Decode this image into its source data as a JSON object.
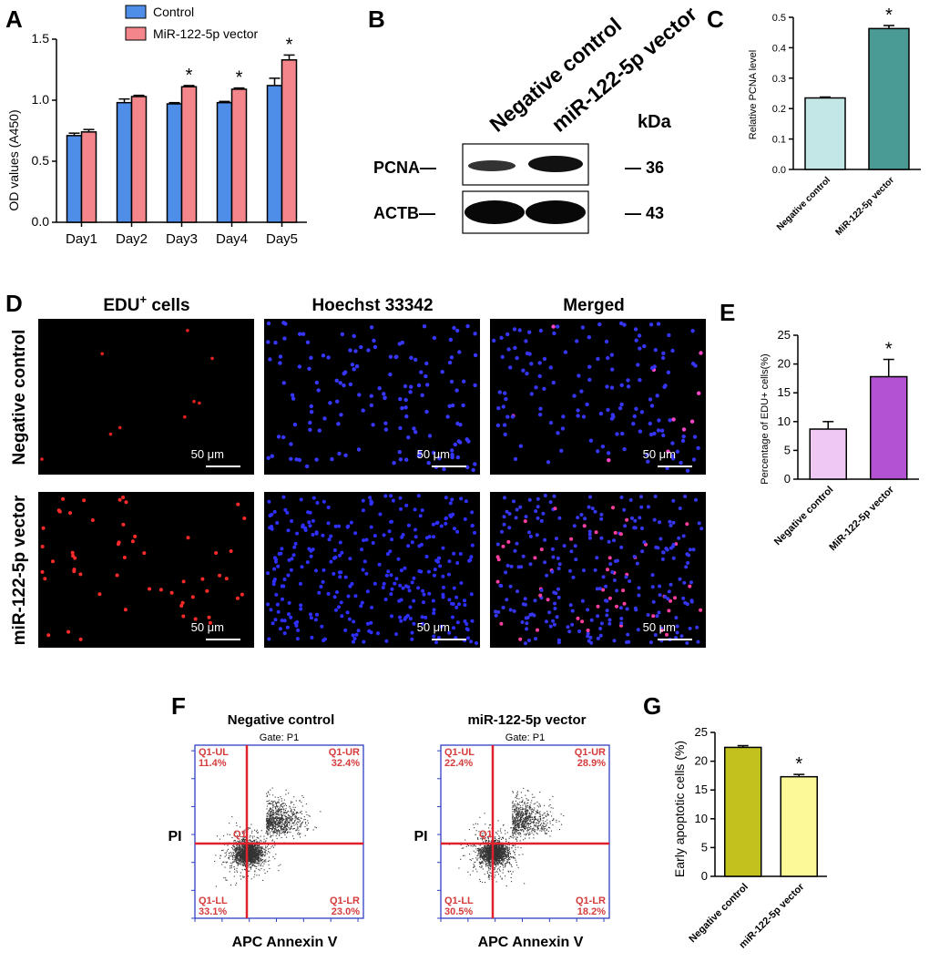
{
  "panels": {
    "A": "A",
    "B": "B",
    "C": "C",
    "D": "D",
    "E": "E",
    "F": "F",
    "G": "G"
  },
  "colors": {
    "control": "#4f8ee8",
    "vector": "#f4858a",
    "c_nc": "#c3e6e6",
    "c_vec": "#4a9b96",
    "e_nc": "#efc8f4",
    "e_vec": "#b452d4",
    "g_nc": "#c2c21e",
    "g_vec": "#fbfa96"
  },
  "chart_data": [
    {
      "id": "A",
      "type": "bar",
      "categories": [
        "Day1",
        "Day2",
        "Day3",
        "Day4",
        "Day5"
      ],
      "series": [
        {
          "name": "Control",
          "values": [
            0.71,
            0.98,
            0.97,
            0.98,
            1.12
          ],
          "errors": [
            0.02,
            0.03,
            0.01,
            0.01,
            0.06
          ]
        },
        {
          "name": "MiR-122-5p vector",
          "values": [
            0.74,
            1.03,
            1.11,
            1.09,
            1.33
          ],
          "errors": [
            0.02,
            0.01,
            0.01,
            0.01,
            0.04
          ]
        }
      ],
      "significance": [
        "",
        "",
        "*",
        "*",
        "*"
      ],
      "ylabel": "OD values (A450)",
      "ylim": [
        0,
        1.5
      ],
      "yticks": [
        "0.0",
        "0.5",
        "1.0",
        "1.5"
      ]
    },
    {
      "id": "C",
      "type": "bar",
      "categories": [
        "Negative control",
        "MiR-122-5p vector"
      ],
      "values": [
        0.235,
        0.463
      ],
      "errors": [
        0.003,
        0.01
      ],
      "significance": [
        "",
        "*"
      ],
      "ylabel": "Relative PCNA level",
      "ylim": [
        0,
        0.5
      ],
      "yticks": [
        "0.0",
        "0.1",
        "0.2",
        "0.3",
        "0.4",
        "0.5"
      ]
    },
    {
      "id": "E",
      "type": "bar",
      "categories": [
        "Negative control",
        "MiR-122-5p vector"
      ],
      "values": [
        8.7,
        17.8
      ],
      "errors": [
        1.3,
        3.0
      ],
      "significance": [
        "",
        "*"
      ],
      "ylabel": "Percentage of EDU+ cells(%)",
      "ylim": [
        0,
        25
      ],
      "yticks": [
        "0",
        "5",
        "10",
        "15",
        "20",
        "25"
      ]
    },
    {
      "id": "G",
      "type": "bar",
      "categories": [
        "Negative control",
        "miR-122-5p vector"
      ],
      "values": [
        22.4,
        17.3
      ],
      "errors": [
        0.3,
        0.4
      ],
      "significance": [
        "",
        "*"
      ],
      "ylabel": "Early apoptotic cells (%)",
      "ylim": [
        0,
        25
      ],
      "yticks": [
        "0",
        "5",
        "10",
        "15",
        "20",
        "25"
      ]
    }
  ],
  "panelB": {
    "lane1": "Negative control",
    "lane2": "miR-122-5p vector",
    "kda": "kDa",
    "rows": [
      {
        "protein": "PCNA—",
        "size": "— 36"
      },
      {
        "protein": "ACTB—",
        "size": "— 43"
      }
    ]
  },
  "panelD": {
    "col1_main": "EDU",
    "col1_sup": "+",
    "col1_rest": " cells",
    "col2": "Hoechst 33342",
    "col3": "Merged",
    "row1": "Negative control",
    "row2": "miR-122-5p vector",
    "scale": "50 μm"
  },
  "panelF": {
    "plots": [
      {
        "title": "Negative control",
        "gate": "Gate: P1",
        "UL": "Q1-UL",
        "ULv": "11.4%",
        "UR": "Q1-UR",
        "URv": "32.4%",
        "LL": "Q1-LL",
        "LLv": "33.1%",
        "LR": "Q1-LR",
        "LRv": "23.0%"
      },
      {
        "title": "miR-122-5p vector",
        "gate": "Gate: P1",
        "UL": "Q1-UL",
        "ULv": "22.4%",
        "UR": "Q1-UR",
        "URv": "28.9%",
        "LL": "Q1-LL",
        "LLv": "30.5%",
        "LR": "Q1-LR",
        "LRv": "18.2%"
      }
    ],
    "quad": "Q1",
    "ylabel": "PI",
    "xlabel": "APC Annexin V"
  }
}
